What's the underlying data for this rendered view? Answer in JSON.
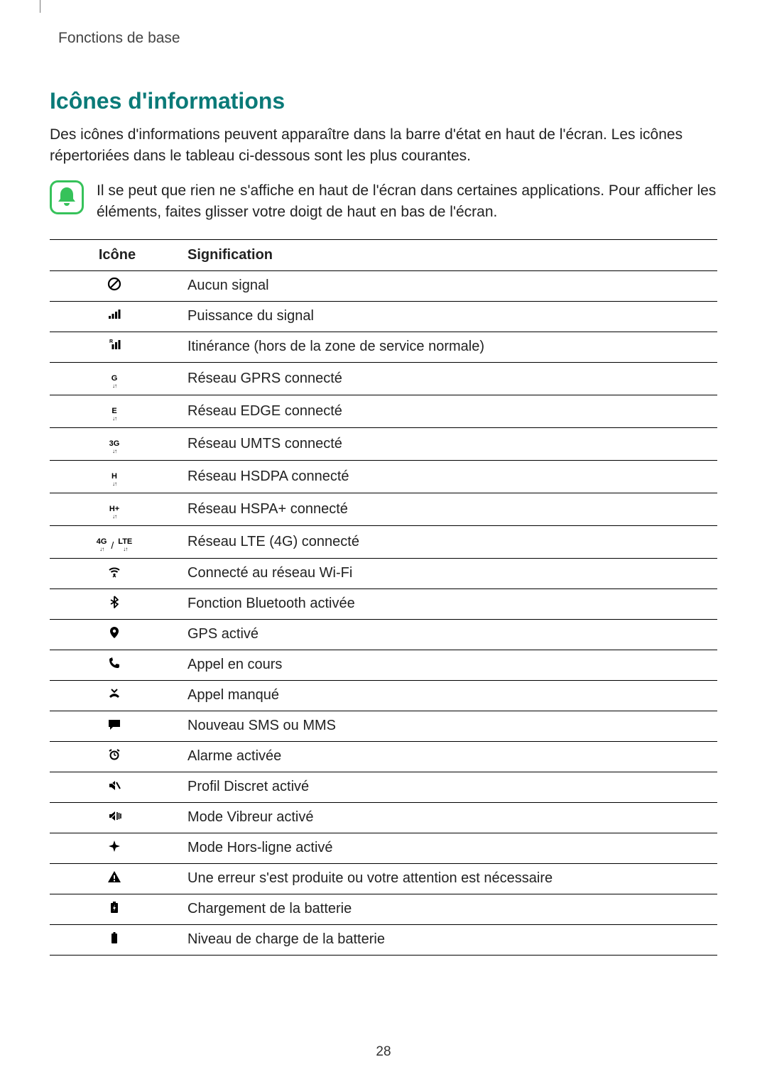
{
  "breadcrumb": "Fonctions de base",
  "section_title": "Icônes d'informations",
  "intro": "Des icônes d'informations peuvent apparaître dans la barre d'état en haut de l'écran. Les icônes répertoriées dans le tableau ci-dessous sont les plus courantes.",
  "note": "Il se peut que rien ne s'affiche en haut de l'écran dans certaines applications. Pour afficher les éléments, faites glisser votre doigt de haut en bas de l'écran.",
  "table": {
    "headers": {
      "icon": "Icône",
      "meaning": "Signification"
    },
    "rows": [
      {
        "icon_key": "no-signal",
        "meaning": "Aucun signal"
      },
      {
        "icon_key": "signal",
        "meaning": "Puissance du signal"
      },
      {
        "icon_key": "roaming",
        "meaning": "Itinérance (hors de la zone de service normale)"
      },
      {
        "icon_key": "gprs",
        "net_label": "G",
        "meaning": "Réseau GPRS connecté"
      },
      {
        "icon_key": "edge",
        "net_label": "E",
        "meaning": "Réseau EDGE connecté"
      },
      {
        "icon_key": "umts",
        "net_label": "3G",
        "meaning": "Réseau UMTS connecté"
      },
      {
        "icon_key": "hsdpa",
        "net_label": "H",
        "meaning": "Réseau HSDPA connecté"
      },
      {
        "icon_key": "hspa-plus",
        "net_label": "H+",
        "meaning": "Réseau HSPA+ connecté"
      },
      {
        "icon_key": "lte",
        "net_label_a": "4G",
        "net_label_b": "LTE",
        "sep": "/",
        "meaning": "Réseau LTE (4G) connecté"
      },
      {
        "icon_key": "wifi",
        "meaning": "Connecté au réseau Wi-Fi"
      },
      {
        "icon_key": "bluetooth",
        "meaning": "Fonction Bluetooth activée"
      },
      {
        "icon_key": "gps",
        "meaning": "GPS activé"
      },
      {
        "icon_key": "call",
        "meaning": "Appel en cours"
      },
      {
        "icon_key": "missed-call",
        "meaning": "Appel manqué"
      },
      {
        "icon_key": "sms",
        "meaning": "Nouveau SMS ou MMS"
      },
      {
        "icon_key": "alarm",
        "meaning": "Alarme activée"
      },
      {
        "icon_key": "mute",
        "meaning": "Profil Discret activé"
      },
      {
        "icon_key": "vibrate",
        "meaning": "Mode Vibreur activé"
      },
      {
        "icon_key": "airplane",
        "meaning": "Mode Hors-ligne activé"
      },
      {
        "icon_key": "warning",
        "meaning": "Une erreur s'est produite ou votre attention est nécessaire"
      },
      {
        "icon_key": "charging",
        "meaning": "Chargement de la batterie"
      },
      {
        "icon_key": "battery",
        "meaning": "Niveau de charge de la batterie"
      }
    ]
  },
  "page_number": "28",
  "colors": {
    "accent": "#0a7a78",
    "note_green": "#36c25a",
    "text": "#222222",
    "border": "#000000"
  }
}
